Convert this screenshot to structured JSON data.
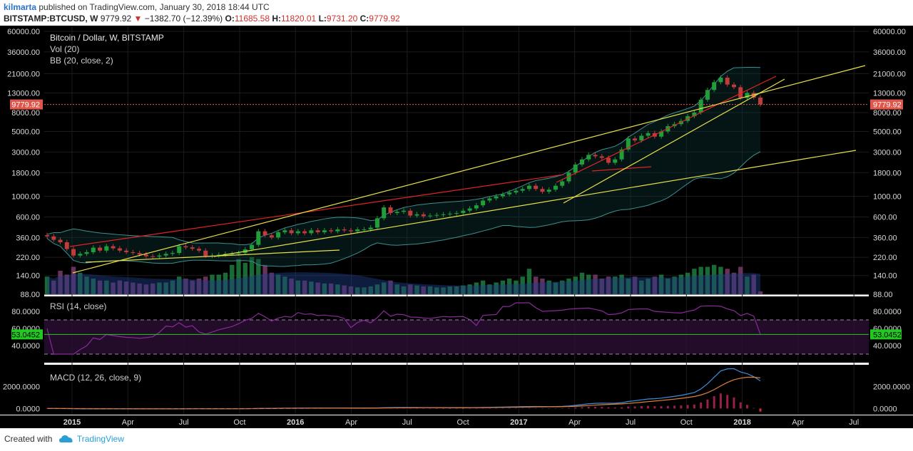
{
  "header": {
    "author": "kilmarta",
    "published_text": "published on TradingView.com, January 30, 2018 18:44 UTC",
    "symbol": "BITSTAMP:BTCUSD, W",
    "last_price": "9779.92",
    "change": "−1382.70 (−12.39%)",
    "o_label": "O:",
    "o_value": "11685.58",
    "h_label": "H:",
    "h_value": "11820.01",
    "l_label": "L:",
    "l_value": "9731.20",
    "c_label": "C:",
    "c_value": "9779.92"
  },
  "legend": {
    "main_title": "Bitcoin / Dollar, W, BITSTAMP",
    "vol": "Vol (20)",
    "bb": "BB (20, close, 2)",
    "rsi": "RSI (14, close)",
    "macd": "MACD (12, 26, close, 9)"
  },
  "footer": {
    "created_with": "Created with",
    "brand": "TradingView"
  },
  "colors": {
    "background": "#000000",
    "bull": "#1f9e3a",
    "bear": "#c23b3b",
    "trend_red": "#e02424",
    "trend_yellow": "#e8e04a",
    "bb_line": "#3e8f8f",
    "rsi_line": "#8a2b9a",
    "macd_line": "#3a8fe0",
    "signal_line": "#e0803a",
    "price_tag": "#e0564a",
    "rsi_tag": "#22c922"
  },
  "chart_data": [
    {
      "type": "candlestick",
      "title": "Bitcoin / Dollar, W, BITSTAMP",
      "scale": "log",
      "ylim": [
        88,
        60000
      ],
      "y_ticks": [
        "60000.00",
        "36000.00",
        "21000.00",
        "13000.00",
        "8000.00",
        "5000.00",
        "3000.00",
        "1800.00",
        "1000.00",
        "600.00",
        "360.00",
        "220.00",
        "140.00",
        "88.00"
      ],
      "x_ticks": [
        "2015",
        "Apr",
        "Jul",
        "Oct",
        "2016",
        "Apr",
        "Jul",
        "Oct",
        "2017",
        "Apr",
        "Jul",
        "Oct",
        "2018",
        "Apr",
        "Jul"
      ],
      "last_price_label": "9779.92",
      "close_series": [
        370,
        340,
        320,
        270,
        230,
        240,
        250,
        280,
        260,
        290,
        275,
        260,
        250,
        245,
        236,
        226,
        224,
        230,
        240,
        245,
        290,
        282,
        272,
        260,
        228,
        230,
        235,
        240,
        240,
        245,
        268,
        300,
        420,
        380,
        360,
        410,
        430,
        400,
        420,
        400,
        430,
        410,
        430,
        420,
        440,
        430,
        420,
        440,
        440,
        460,
        580,
        760,
        660,
        680,
        700,
        620,
        640,
        610,
        620,
        630,
        640,
        650,
        660,
        700,
        740,
        800,
        900,
        950,
        1000,
        1050,
        1100,
        1150,
        1200,
        1300,
        1200,
        1120,
        1180,
        1300,
        1450,
        1800,
        2200,
        2500,
        2800,
        2700,
        2600,
        2300,
        2500,
        3200,
        4200,
        4000,
        4500,
        4800,
        4400,
        5000,
        5700,
        6000,
        6500,
        7300,
        8000,
        11000,
        14000,
        17000,
        19000,
        16000,
        15000,
        11500,
        13000,
        11600,
        9780
      ],
      "volume_series": [
        900,
        700,
        1200,
        1000,
        1400,
        1100,
        900,
        800,
        700,
        700,
        600,
        700,
        650,
        600,
        550,
        500,
        550,
        600,
        600,
        700,
        900,
        800,
        700,
        800,
        900,
        1000,
        1000,
        1100,
        1500,
        1800,
        1600,
        1900,
        1800,
        1500,
        1100,
        1000,
        900,
        800,
        700,
        700,
        650,
        600,
        550,
        550,
        500,
        450,
        400,
        350,
        350,
        400,
        500,
        600,
        700,
        500,
        400,
        500,
        450,
        400,
        400,
        350,
        350,
        400,
        400,
        450,
        500,
        600,
        700,
        500,
        600,
        700,
        800,
        700,
        900,
        1300,
        900,
        800,
        700,
        600,
        700,
        800,
        900,
        1100,
        1000,
        1000,
        800,
        900,
        900,
        1000,
        800,
        900,
        700,
        800,
        900,
        1000,
        800,
        900,
        1000,
        1100,
        1300,
        1400,
        1400,
        1500,
        1400,
        1300,
        1100,
        1400,
        900,
        1000,
        150
      ]
    },
    {
      "type": "line",
      "title": "RSI (14, close)",
      "ylim": [
        20,
        95
      ],
      "y_ticks": [
        "80.0000",
        "60.0000",
        "40.0000"
      ],
      "bands": [
        70,
        30
      ],
      "last_value_label": "53.0452",
      "last_value": 53.0452
    },
    {
      "type": "line",
      "title": "MACD (12, 26, close, 9)",
      "ylim": [
        -500,
        3800
      ],
      "y_ticks": [
        "2000.0000",
        "0.0000"
      ]
    }
  ]
}
